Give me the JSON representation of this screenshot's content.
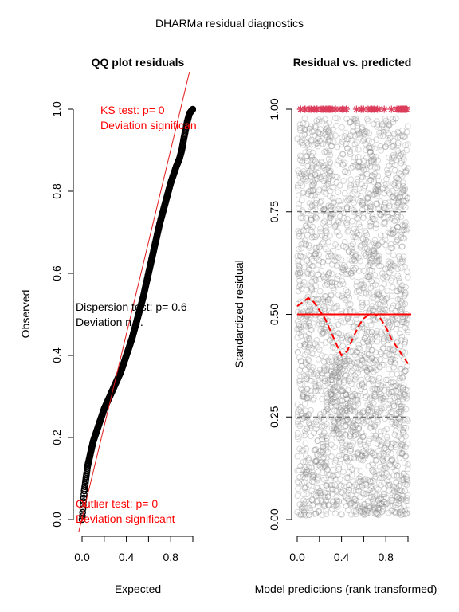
{
  "title": "DHARMa residual diagnostics",
  "chart_data": [
    {
      "type": "scatter",
      "title": "QQ plot residuals",
      "xlabel": "Expected",
      "ylabel": "Observed",
      "xlim": [
        0,
        1
      ],
      "ylim": [
        0,
        1
      ],
      "x_ticks": [
        "0.0",
        "0.4",
        "0.8"
      ],
      "y_ticks": [
        "0.0",
        "0.2",
        "0.4",
        "0.6",
        "0.8",
        "1.0"
      ],
      "colors": {
        "points": "#000000",
        "reference_line": "#e41a1c",
        "ks": "#ff0000",
        "dispersion": "#000000",
        "outlier": "#ff0000"
      },
      "qq_points": {
        "x": [
          0.0,
          0.02,
          0.05,
          0.1,
          0.15,
          0.2,
          0.25,
          0.3,
          0.35,
          0.4,
          0.45,
          0.5,
          0.55,
          0.6,
          0.65,
          0.7,
          0.75,
          0.8,
          0.85,
          0.88,
          0.9,
          0.92,
          0.95,
          0.97,
          1.0
        ],
        "y": [
          0.0,
          0.07,
          0.13,
          0.19,
          0.23,
          0.27,
          0.3,
          0.33,
          0.36,
          0.4,
          0.44,
          0.49,
          0.54,
          0.6,
          0.66,
          0.72,
          0.77,
          0.82,
          0.86,
          0.88,
          0.9,
          0.93,
          0.97,
          0.99,
          1.0
        ]
      },
      "reference_line": {
        "x": [
          0,
          1
        ],
        "y": [
          0,
          1
        ]
      },
      "annotations": {
        "ks": [
          "KS test: p= 0",
          "Deviation  significant"
        ],
        "dispersion": [
          "Dispersion test: p= 0.6",
          "Deviation  n.s."
        ],
        "outlier": [
          "Outlier test: p= 0",
          "Deviation  significant"
        ]
      }
    },
    {
      "type": "scatter",
      "title": "Residual vs. predicted",
      "xlabel": "Model predictions (rank transformed)",
      "ylabel": "Standardized residual",
      "xlim": [
        0,
        1
      ],
      "ylim": [
        0,
        1
      ],
      "x_ticks": [
        "0.0",
        "0.4",
        "0.8"
      ],
      "y_ticks": [
        "0.00",
        "0.25",
        "0.50",
        "0.75",
        "1.00"
      ],
      "colors": {
        "points": "#7f7f7f",
        "outliers": "#dc3c5a",
        "median": "#ff0000",
        "smooth": "#ff0000",
        "quantile_lines": "#555555"
      },
      "hlines": [
        0.25,
        0.5,
        0.75
      ],
      "smooth": {
        "x": [
          0.0,
          0.05,
          0.1,
          0.15,
          0.2,
          0.25,
          0.3,
          0.35,
          0.4,
          0.45,
          0.5,
          0.55,
          0.6,
          0.65,
          0.7,
          0.75,
          0.8,
          0.85,
          0.9,
          0.95,
          1.0
        ],
        "y": [
          0.52,
          0.53,
          0.54,
          0.53,
          0.51,
          0.49,
          0.46,
          0.43,
          0.4,
          0.41,
          0.44,
          0.47,
          0.49,
          0.5,
          0.5,
          0.49,
          0.47,
          0.44,
          0.42,
          0.4,
          0.38
        ]
      },
      "outlier_band": {
        "y": 1.0,
        "x_ranges": [
          [
            0.0,
            0.5
          ],
          [
            0.5,
            1.0
          ]
        ]
      }
    }
  ]
}
